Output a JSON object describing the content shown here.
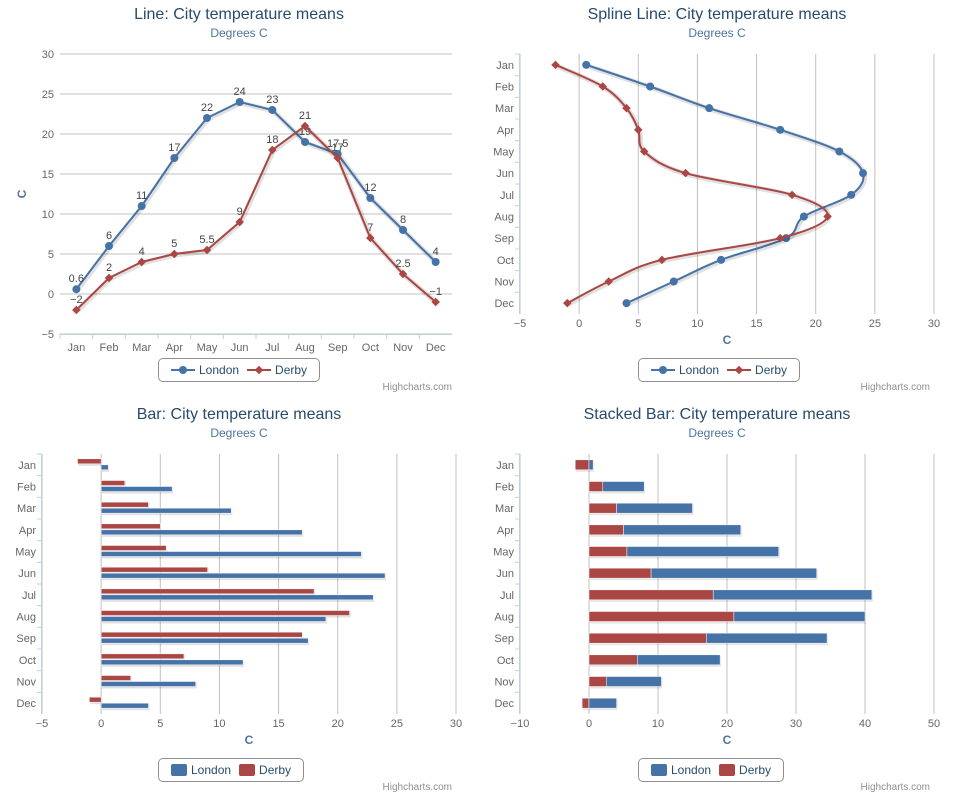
{
  "colors": {
    "london": "#4572a7",
    "derby": "#aa4643"
  },
  "credit": "Highcharts.com",
  "chart_data": [
    {
      "type": "line",
      "title": "Line: City temperature means",
      "subtitle": "Degrees C",
      "categories": [
        "Jan",
        "Feb",
        "Mar",
        "Apr",
        "May",
        "Jun",
        "Jul",
        "Aug",
        "Sep",
        "Oct",
        "Nov",
        "Dec"
      ],
      "series": [
        {
          "name": "London",
          "values": [
            0.6,
            6,
            11,
            17,
            22,
            24,
            23,
            19,
            17.5,
            12,
            8,
            4
          ]
        },
        {
          "name": "Derby",
          "values": [
            -2,
            2,
            4,
            5,
            5.5,
            9,
            18,
            21,
            17,
            7,
            2.5,
            -1
          ]
        }
      ],
      "data_labels_shown": true,
      "xlabel": "",
      "ylabel": "C",
      "ylim": [
        -5,
        30
      ],
      "yticks": [
        "30",
        "25",
        "20",
        "15",
        "10",
        "5",
        "0",
        "−5"
      ],
      "legend": [
        "London",
        "Derby"
      ]
    },
    {
      "type": "line",
      "title": "Spline Line: City temperature means",
      "subtitle": "Degrees C",
      "categories": [
        "Jan",
        "Feb",
        "Mar",
        "Apr",
        "May",
        "Jun",
        "Jul",
        "Aug",
        "Sep",
        "Oct",
        "Nov",
        "Dec"
      ],
      "series": [
        {
          "name": "London",
          "values": [
            0.6,
            6,
            11,
            17,
            22,
            24,
            23,
            19,
            17.5,
            12,
            8,
            4
          ]
        },
        {
          "name": "Derby",
          "values": [
            -2,
            2,
            4,
            5,
            5.5,
            9,
            18,
            21,
            17,
            7,
            2.5,
            -1
          ]
        }
      ],
      "inverted": true,
      "xlabel": "",
      "ylabel": "C",
      "ylim": [
        -5,
        30
      ],
      "yticks": [
        "−5",
        "0",
        "5",
        "10",
        "15",
        "20",
        "25",
        "30"
      ],
      "legend": [
        "London",
        "Derby"
      ]
    },
    {
      "type": "bar",
      "title": "Bar: City temperature means",
      "subtitle": "Degrees C",
      "categories": [
        "Jan",
        "Feb",
        "Mar",
        "Apr",
        "May",
        "Jun",
        "Jul",
        "Aug",
        "Sep",
        "Oct",
        "Nov",
        "Dec"
      ],
      "series": [
        {
          "name": "London",
          "values": [
            0.6,
            6,
            11,
            17,
            22,
            24,
            23,
            19,
            17.5,
            12,
            8,
            4
          ]
        },
        {
          "name": "Derby",
          "values": [
            -2,
            2,
            4,
            5,
            5.5,
            9,
            18,
            21,
            17,
            7,
            2.5,
            -1
          ]
        }
      ],
      "xlabel": "",
      "ylabel": "C",
      "ylim": [
        -5,
        30
      ],
      "yticks": [
        "−5",
        "0",
        "5",
        "10",
        "15",
        "20",
        "25",
        "30"
      ],
      "legend": [
        "London",
        "Derby"
      ]
    },
    {
      "type": "bar",
      "stacked": true,
      "title": "Stacked Bar: City temperature means",
      "subtitle": "Degrees C",
      "categories": [
        "Jan",
        "Feb",
        "Mar",
        "Apr",
        "May",
        "Jun",
        "Jul",
        "Aug",
        "Sep",
        "Oct",
        "Nov",
        "Dec"
      ],
      "series": [
        {
          "name": "London",
          "values": [
            0.6,
            6,
            11,
            17,
            22,
            24,
            23,
            19,
            17.5,
            12,
            8,
            4
          ]
        },
        {
          "name": "Derby",
          "values": [
            -2,
            2,
            4,
            5,
            5.5,
            9,
            18,
            21,
            17,
            7,
            2.5,
            -1
          ]
        }
      ],
      "xlabel": "",
      "ylabel": "C",
      "ylim": [
        -10,
        50
      ],
      "yticks": [
        "−10",
        "0",
        "10",
        "20",
        "30",
        "40",
        "50"
      ],
      "legend": [
        "London",
        "Derby"
      ]
    }
  ]
}
